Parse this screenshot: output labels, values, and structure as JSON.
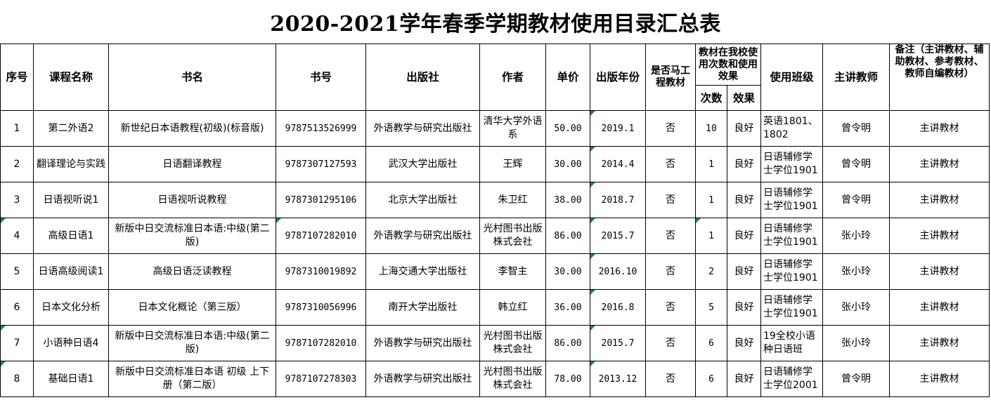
{
  "title": "2020-2021学年春季学期教材使用目录汇总表",
  "columns": {
    "no": "序号",
    "course": "课程名称",
    "book": "书名",
    "isbn": "书号",
    "publisher": "出版社",
    "author": "作者",
    "price": "单价",
    "year": "出版年份",
    "marx": "是否马工程教材",
    "usage_group": "教材在我校使用次数和使用效果",
    "times": "次数",
    "effect": "效果",
    "class": "使用班级",
    "teacher": "主讲教师",
    "note": "备注（主讲教材、辅助教材、参考教材、教师自编教材）"
  },
  "rows": [
    {
      "no": "1",
      "course": "第二外语2",
      "book": "新世纪日本语教程(初级)(标音版)",
      "isbn": "9787513526999",
      "publisher": "外语教学与研究出版社",
      "author": "清华大学外语系",
      "price": "50.00",
      "year": "2019.1",
      "marx": "否",
      "times": "10",
      "effect": "良好",
      "class": "英语1801、1802",
      "teacher": "曾令明",
      "note": "主讲教材"
    },
    {
      "no": "2",
      "course": "翻译理论与实践",
      "book": "日语翻译教程",
      "isbn": "9787307127593",
      "publisher": "武汉大学出版社",
      "author": "王辉",
      "price": "30.00",
      "year": "2014.4",
      "marx": "否",
      "times": "1",
      "effect": "良好",
      "class": "日语辅修学士学位1901",
      "teacher": "曾令明",
      "note": "主讲教材"
    },
    {
      "no": "3",
      "course": "日语视听说1",
      "book": "日语视听说教程",
      "isbn": "9787301295106",
      "publisher": "北京大学出版社",
      "author": "朱卫红",
      "price": "38.00",
      "year": "2018.7",
      "marx": "否",
      "times": "1",
      "effect": "良好",
      "class": "日语辅修学士学位1901",
      "teacher": "曾令明",
      "note": "主讲教材"
    },
    {
      "no": "4",
      "course": "高级日语1",
      "book": "新版中日交流标准日本语:中级(第二版)",
      "isbn": "9787107282010",
      "publisher": "外语教学与研究出版社",
      "author": "光村图书出版株式会社",
      "price": "86.00",
      "year": "2015.7",
      "marx": "否",
      "times": "1",
      "effect": "良好",
      "class": "日语辅修学士学位1901",
      "teacher": "张小玲",
      "note": "主讲教材"
    },
    {
      "no": "5",
      "course": "日语高级阅读1",
      "book": "高级日语泛读教程",
      "isbn": "9787310019892",
      "publisher": "上海交通大学出版社",
      "author": "李智主",
      "price": "30.00",
      "year": "2016.10",
      "marx": "否",
      "times": "2",
      "effect": "良好",
      "class": "日语辅修学士学位1901",
      "teacher": "张小玲",
      "note": "主讲教材"
    },
    {
      "no": "6",
      "course": "日本文化分析",
      "book": "日本文化概论（第三版）",
      "isbn": "9787310056996",
      "publisher": "南开大学出版社",
      "author": "韩立红",
      "price": "36.00",
      "year": "2016.8",
      "marx": "否",
      "times": "5",
      "effect": "良好",
      "class": "日语辅修学士学位1901",
      "teacher": "张小玲",
      "note": "主讲教材"
    },
    {
      "no": "7",
      "course": "小语种日语4",
      "book": "新版中日交流标准日本语:中级(第二版)",
      "isbn": "9787107282010",
      "publisher": "外语教学与研究出版社",
      "author": "光村图书出版株式会社",
      "price": "86.00",
      "year": "2015.7",
      "marx": "否",
      "times": "6",
      "effect": "良好",
      "class": "19全校小语种日语班",
      "teacher": "张小玲",
      "note": "主讲教材"
    },
    {
      "no": "8",
      "course": "基础日语1",
      "book": "新版中日交流标准日本语 初级 上下册（第二版）",
      "isbn": "9787107278303",
      "publisher": "外语教学与研究出版社",
      "author": "光村图书出版株式会社",
      "price": "78.00",
      "year": "2013.12",
      "marx": "否",
      "times": "6",
      "effect": "良好",
      "class": "日语辅修学士学位2001",
      "teacher": "曾令明",
      "note": "主讲教材"
    }
  ],
  "marker_color": "#1a8a3a"
}
